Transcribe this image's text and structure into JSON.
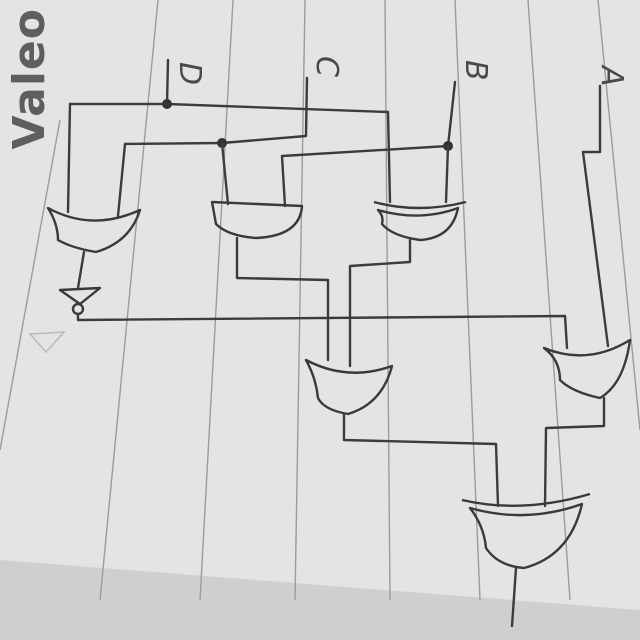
{
  "brand": {
    "text": "Valeo"
  },
  "inputs": {
    "a": "A",
    "b": "B",
    "c": "C",
    "d": "D"
  },
  "gates": [
    {
      "id": "g1",
      "type": "OR"
    },
    {
      "id": "g2",
      "type": "AND"
    },
    {
      "id": "g3",
      "type": "XOR"
    },
    {
      "id": "g4",
      "type": "NOT"
    },
    {
      "id": "g5",
      "type": "OR"
    },
    {
      "id": "g6",
      "type": "OR"
    },
    {
      "id": "g7",
      "type": "XOR"
    }
  ],
  "colors": {
    "paper": "#e6e6e6",
    "ink": "#3a3a3a",
    "rule": "#9c9c9c"
  }
}
